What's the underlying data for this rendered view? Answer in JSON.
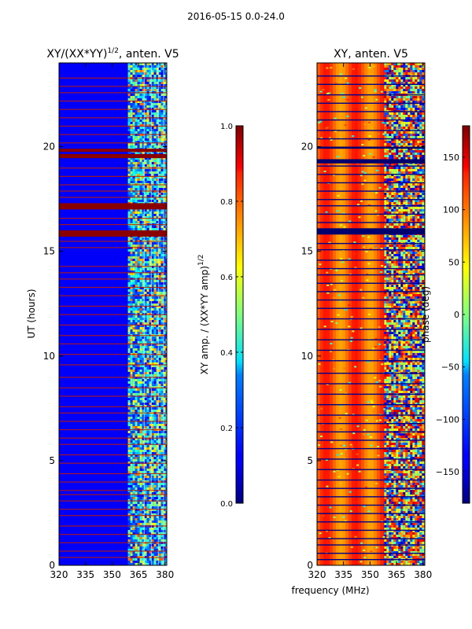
{
  "suptitle": "2016-05-15 0.0-24.0",
  "chart_data": [
    {
      "type": "heatmap",
      "title": "XY/(XX*YY)",
      "title_exponent": "1/2",
      "title_suffix": ", anten. V5",
      "xlabel": "frequency (MHz)",
      "ylabel": "UT (hours)",
      "xlim": [
        320,
        381
      ],
      "ylim": [
        0,
        24
      ],
      "xticks": [
        320,
        335,
        350,
        365,
        380
      ],
      "yticks": [
        0,
        5,
        10,
        15,
        20
      ],
      "colorbar": {
        "label": "XY amp. / (XX*YY amp)",
        "label_exponent": "1/2",
        "range": [
          0.0,
          1.0
        ],
        "ticks": [
          "0.0",
          "0.2",
          "0.4",
          "0.6",
          "0.8",
          "1.0"
        ],
        "colormap": "jet"
      },
      "background_value": 0.12,
      "band_start_mhz": 359,
      "saturated_hour_ranges": [
        [
          15.7,
          16.0
        ],
        [
          17.0,
          17.3
        ],
        [
          19.45,
          19.65
        ],
        [
          19.75,
          19.9
        ]
      ],
      "flagged_hours": [
        0.4,
        0.7,
        1.1,
        1.5,
        1.9,
        2.4,
        2.7,
        3.1,
        3.4,
        3.6,
        4.0,
        4.4,
        4.9,
        5.3,
        5.8,
        6.1,
        6.5,
        6.9,
        7.3,
        7.6,
        8.1,
        8.5,
        9.0,
        9.6,
        10.1,
        10.6,
        11.0,
        11.5,
        12.0,
        12.4,
        12.9,
        13.3,
        13.7,
        14.0,
        14.3,
        15.2,
        15.5,
        16.3,
        16.6,
        17.6,
        17.9,
        18.2,
        18.6,
        19.0,
        20.2,
        20.6,
        21.0,
        21.4,
        21.8,
        22.2,
        22.6,
        22.9,
        23.3
      ]
    },
    {
      "type": "heatmap",
      "title": "XY, anten. V5",
      "xlabel": "frequency (MHz)",
      "ylabel": "",
      "xlim": [
        320,
        381
      ],
      "ylim": [
        0,
        24
      ],
      "xticks": [
        320,
        335,
        350,
        365,
        380
      ],
      "yticks": [
        0,
        5,
        10,
        15,
        20
      ],
      "colorbar": {
        "label": "phase (deg)",
        "range": [
          -180,
          180
        ],
        "ticks": [
          "150",
          "100",
          "50",
          "0",
          "−50",
          "−100",
          "−150"
        ],
        "tick_values": [
          150,
          100,
          50,
          0,
          -50,
          -100,
          -150
        ],
        "colormap": "jet"
      },
      "background_phase_deg": 120,
      "band_start_mhz": 358,
      "dark_hour_ranges": [
        [
          15.8,
          16.1
        ],
        [
          19.2,
          19.4
        ],
        [
          19.9,
          20.0
        ]
      ],
      "flagged_hours": [
        0.3,
        0.6,
        1.0,
        1.3,
        1.7,
        2.1,
        2.5,
        2.9,
        3.3,
        3.7,
        4.1,
        4.6,
        5.1,
        5.6,
        6.0,
        6.4,
        6.8,
        7.2,
        7.7,
        8.2,
        8.7,
        9.2,
        9.8,
        10.3,
        10.8,
        11.3,
        11.8,
        12.3,
        12.7,
        13.1,
        13.5,
        13.9,
        14.2,
        14.6,
        15.1,
        15.4,
        16.4,
        16.8,
        17.2,
        17.5,
        17.9,
        18.3,
        18.7,
        19.1,
        20.4,
        20.8,
        21.3,
        21.7,
        22.1,
        22.5,
        23.0,
        23.4
      ]
    }
  ]
}
